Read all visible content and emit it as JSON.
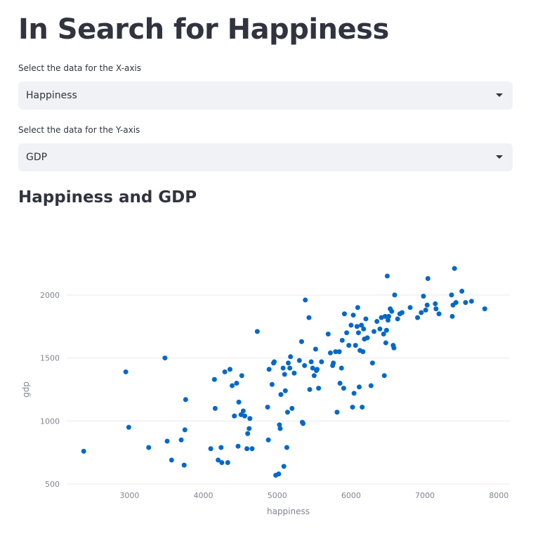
{
  "page": {
    "title": "In Search for Happiness"
  },
  "controls": {
    "x_label": "Select the data for the X-axis",
    "x_value": "Happiness",
    "y_label": "Select the data for the Y-axis",
    "y_value": "GDP"
  },
  "chart_heading": "Happiness and GDP",
  "chart_data": {
    "type": "scatter",
    "xlabel": "happiness",
    "ylabel": "gdp",
    "xlim": [
      2150,
      8150
    ],
    "ylim": [
      450,
      2250
    ],
    "xticks": [
      3000,
      4000,
      5000,
      6000,
      7000,
      8000
    ],
    "yticks": [
      500,
      1000,
      1500,
      2000
    ],
    "grid": "horizontal",
    "color": "#0068c9",
    "points": [
      [
        2380,
        760
      ],
      [
        2950,
        1390
      ],
      [
        2990,
        950
      ],
      [
        3260,
        790
      ],
      [
        3480,
        1500
      ],
      [
        3510,
        840
      ],
      [
        3570,
        690
      ],
      [
        3700,
        850
      ],
      [
        3740,
        650
      ],
      [
        3750,
        930
      ],
      [
        3760,
        1170
      ],
      [
        4100,
        780
      ],
      [
        4150,
        1330
      ],
      [
        4160,
        1100
      ],
      [
        4200,
        690
      ],
      [
        4240,
        790
      ],
      [
        4250,
        670
      ],
      [
        4290,
        1390
      ],
      [
        4330,
        670
      ],
      [
        4360,
        1410
      ],
      [
        4390,
        1280
      ],
      [
        4420,
        1040
      ],
      [
        4450,
        1300
      ],
      [
        4470,
        800
      ],
      [
        4480,
        1150
      ],
      [
        4510,
        1050
      ],
      [
        4520,
        1360
      ],
      [
        4540,
        1080
      ],
      [
        4560,
        1040
      ],
      [
        4590,
        780
      ],
      [
        4600,
        900
      ],
      [
        4620,
        940
      ],
      [
        4630,
        1020
      ],
      [
        4660,
        780
      ],
      [
        4730,
        1710
      ],
      [
        4870,
        1110
      ],
      [
        4880,
        850
      ],
      [
        4890,
        1410
      ],
      [
        4930,
        1290
      ],
      [
        4950,
        1460
      ],
      [
        4960,
        1470
      ],
      [
        4980,
        570
      ],
      [
        5020,
        580
      ],
      [
        5030,
        970
      ],
      [
        5040,
        940
      ],
      [
        5050,
        1210
      ],
      [
        5080,
        1420
      ],
      [
        5090,
        640
      ],
      [
        5100,
        1370
      ],
      [
        5110,
        1240
      ],
      [
        5130,
        790
      ],
      [
        5140,
        1070
      ],
      [
        5150,
        1460
      ],
      [
        5170,
        1420
      ],
      [
        5180,
        1510
      ],
      [
        5200,
        1100
      ],
      [
        5230,
        1380
      ],
      [
        5300,
        1480
      ],
      [
        5330,
        1630
      ],
      [
        5340,
        990
      ],
      [
        5350,
        980
      ],
      [
        5370,
        1440
      ],
      [
        5380,
        1960
      ],
      [
        5430,
        1820
      ],
      [
        5440,
        1250
      ],
      [
        5460,
        1470
      ],
      [
        5480,
        1420
      ],
      [
        5500,
        1360
      ],
      [
        5520,
        1570
      ],
      [
        5530,
        1400
      ],
      [
        5540,
        1410
      ],
      [
        5560,
        1260
      ],
      [
        5600,
        1470
      ],
      [
        5690,
        1690
      ],
      [
        5720,
        1540
      ],
      [
        5750,
        1440
      ],
      [
        5760,
        1460
      ],
      [
        5790,
        1550
      ],
      [
        5810,
        1070
      ],
      [
        5840,
        1550
      ],
      [
        5850,
        1300
      ],
      [
        5870,
        1420
      ],
      [
        5880,
        1640
      ],
      [
        5900,
        1260
      ],
      [
        5910,
        1850
      ],
      [
        5940,
        1700
      ],
      [
        5970,
        1600
      ],
      [
        6000,
        1760
      ],
      [
        6020,
        1110
      ],
      [
        6030,
        1840
      ],
      [
        6040,
        1220
      ],
      [
        6060,
        1600
      ],
      [
        6080,
        1750
      ],
      [
        6090,
        1900
      ],
      [
        6100,
        1700
      ],
      [
        6110,
        1270
      ],
      [
        6120,
        1560
      ],
      [
        6140,
        1760
      ],
      [
        6150,
        1110
      ],
      [
        6160,
        1550
      ],
      [
        6170,
        1730
      ],
      [
        6180,
        1650
      ],
      [
        6200,
        1810
      ],
      [
        6220,
        1660
      ],
      [
        6270,
        1280
      ],
      [
        6290,
        1460
      ],
      [
        6310,
        1710
      ],
      [
        6350,
        1790
      ],
      [
        6390,
        1730
      ],
      [
        6410,
        1820
      ],
      [
        6440,
        1690
      ],
      [
        6450,
        1360
      ],
      [
        6460,
        1830
      ],
      [
        6470,
        1620
      ],
      [
        6480,
        1720
      ],
      [
        6490,
        2150
      ],
      [
        6500,
        1800
      ],
      [
        6510,
        1830
      ],
      [
        6530,
        1890
      ],
      [
        6550,
        1870
      ],
      [
        6570,
        1600
      ],
      [
        6580,
        1580
      ],
      [
        6590,
        2000
      ],
      [
        6630,
        1810
      ],
      [
        6660,
        1850
      ],
      [
        6690,
        1860
      ],
      [
        6800,
        1900
      ],
      [
        6900,
        1820
      ],
      [
        6950,
        1860
      ],
      [
        6980,
        1990
      ],
      [
        7010,
        1880
      ],
      [
        7030,
        1920
      ],
      [
        7040,
        2130
      ],
      [
        7140,
        1930
      ],
      [
        7150,
        1890
      ],
      [
        7190,
        1850
      ],
      [
        7360,
        2000
      ],
      [
        7370,
        1830
      ],
      [
        7380,
        1920
      ],
      [
        7400,
        2210
      ],
      [
        7420,
        1940
      ],
      [
        7500,
        2030
      ],
      [
        7550,
        1940
      ],
      [
        7630,
        1950
      ],
      [
        7810,
        1890
      ]
    ]
  }
}
